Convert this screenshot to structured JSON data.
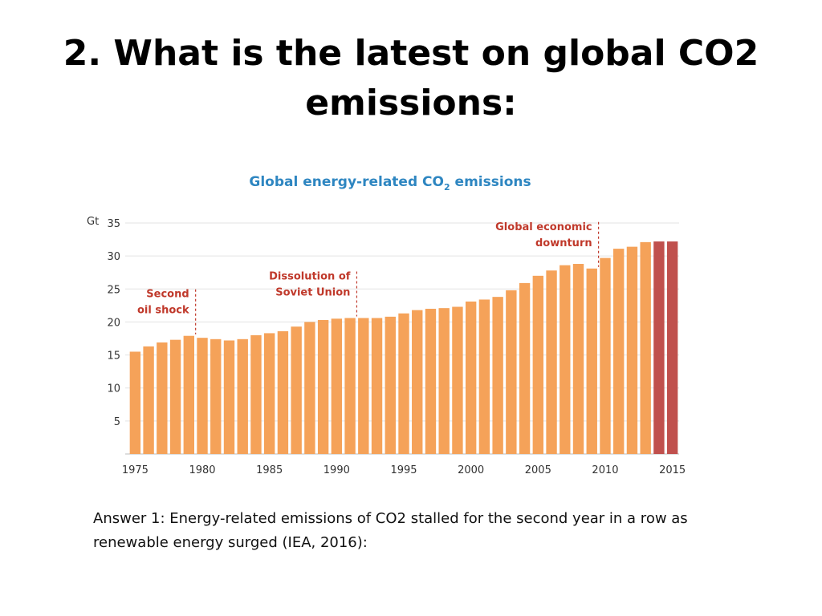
{
  "slide": {
    "title": "2. What is the latest on global CO2 emissions:",
    "answer": "Answer 1: Energy-related emissions of CO2 stalled for the second year in a row as renewable energy surged (IEA, 2016):"
  },
  "colors": {
    "bar": "#F5A259",
    "bar_highlight": "#C0504D",
    "title": "#2E86C1",
    "annotation": "#C0392B",
    "axis_text": "#333333",
    "grid": "#e3e3e3"
  },
  "chart_data": {
    "type": "bar",
    "title": "Global energy-related CO2 emissions",
    "title_parts": [
      "Global energy-related CO",
      "2",
      " emissions"
    ],
    "ylabel_unit": "Gt",
    "ylim": [
      0,
      35
    ],
    "yticks": [
      5,
      10,
      15,
      20,
      25,
      30,
      35
    ],
    "xtick_labels": [
      "1975",
      "1980",
      "1985",
      "1990",
      "1995",
      "2000",
      "2005",
      "2010",
      "2015"
    ],
    "grid": true,
    "categories": [
      1975,
      1976,
      1977,
      1978,
      1979,
      1980,
      1981,
      1982,
      1983,
      1984,
      1985,
      1986,
      1987,
      1988,
      1989,
      1990,
      1991,
      1992,
      1993,
      1994,
      1995,
      1996,
      1997,
      1998,
      1999,
      2000,
      2001,
      2002,
      2003,
      2004,
      2005,
      2006,
      2007,
      2008,
      2009,
      2010,
      2011,
      2012,
      2013,
      2014,
      2015
    ],
    "values": [
      15.5,
      16.3,
      16.9,
      17.3,
      17.9,
      17.6,
      17.4,
      17.2,
      17.4,
      18.0,
      18.3,
      18.6,
      19.3,
      20.0,
      20.3,
      20.5,
      20.6,
      20.6,
      20.6,
      20.8,
      21.3,
      21.8,
      22.0,
      22.1,
      22.3,
      23.1,
      23.4,
      23.8,
      24.8,
      25.9,
      27.0,
      27.8,
      28.6,
      28.8,
      28.1,
      29.7,
      31.1,
      31.4,
      32.1,
      32.2,
      32.2
    ],
    "highlighted_categories": [
      2014,
      2015
    ],
    "annotations": [
      {
        "lines": [
          "Second",
          "oil shock"
        ],
        "year": 1979
      },
      {
        "lines": [
          "Dissolution of",
          "Soviet Union"
        ],
        "year": 1991
      },
      {
        "lines": [
          "Global economic",
          "downturn"
        ],
        "year": 2009
      }
    ]
  }
}
